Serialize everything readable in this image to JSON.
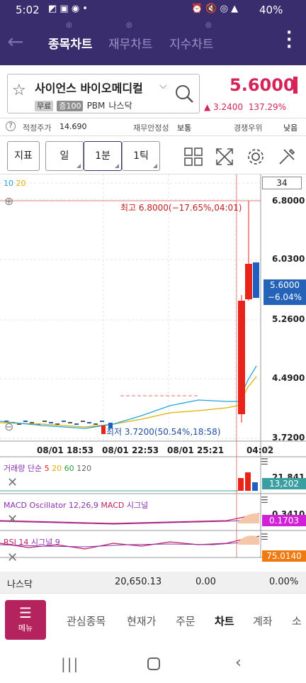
{
  "status": {
    "time": "5:02",
    "battery": "40%"
  },
  "tabs": [
    {
      "label": "종목차트"
    },
    {
      "label": "재무차트"
    },
    {
      "label": "지수차트"
    }
  ],
  "stock": {
    "name": "사이언스 바이오메디컬",
    "tags": [
      "무료",
      "증100"
    ],
    "ticker": "PBM",
    "exchange": "나스닥",
    "price": "5.6000",
    "change": "3.2400",
    "change_pct": "137.29%"
  },
  "info": {
    "fair_price_label": "적정주가",
    "fair_price": "14.690",
    "stability_label": "재무안정성",
    "stability": "보통",
    "competition_label": "경쟁우위",
    "competition": "낮음"
  },
  "toolbar": {
    "indicator": "지표",
    "day": "일",
    "min1": "1분",
    "tick1": "1틱"
  },
  "chart": {
    "ma_labels": [
      "10",
      "20"
    ],
    "count_box": "34",
    "price_labels": [
      "6.8000",
      "6.0300",
      "5.2600",
      "4.4900",
      "3.7200"
    ],
    "high_label": "최고 6.8000(−17.65%,04:01)",
    "low_label": "최저 3.7200(50.54%,18:58)",
    "current_price": "5.6000",
    "current_pct": "−6.04%",
    "time_labels": [
      "08/01 18:53",
      "08/01 22:53",
      "08/01 25:21",
      "04:02"
    ],
    "volume": {
      "title": "거래량 단순",
      "ma": [
        "5",
        "20",
        "60",
        "120"
      ],
      "axis": "21,841",
      "value": "13,202"
    },
    "macd": {
      "title": "MACD Oscillator 12,26,9",
      "macd": "MACD",
      "signal": "시그널",
      "axis": "0.3410",
      "value": "0.1703"
    },
    "rsi": {
      "title": "RSI 14",
      "signal": "시그널 9",
      "value": "75.0140"
    },
    "colors": {
      "up": "#e8231a",
      "down": "#1f5fc4",
      "ma10": "#22a4d8",
      "ma20": "#e0b000"
    }
  },
  "index_row": {
    "name": "나스닥",
    "value": "20,650.13",
    "change": "0.00",
    "pct": "0.00%"
  },
  "menu": {
    "button": "메뉴",
    "items": [
      "관심종목",
      "현재가",
      "주문",
      "차트",
      "계좌",
      "소"
    ]
  }
}
